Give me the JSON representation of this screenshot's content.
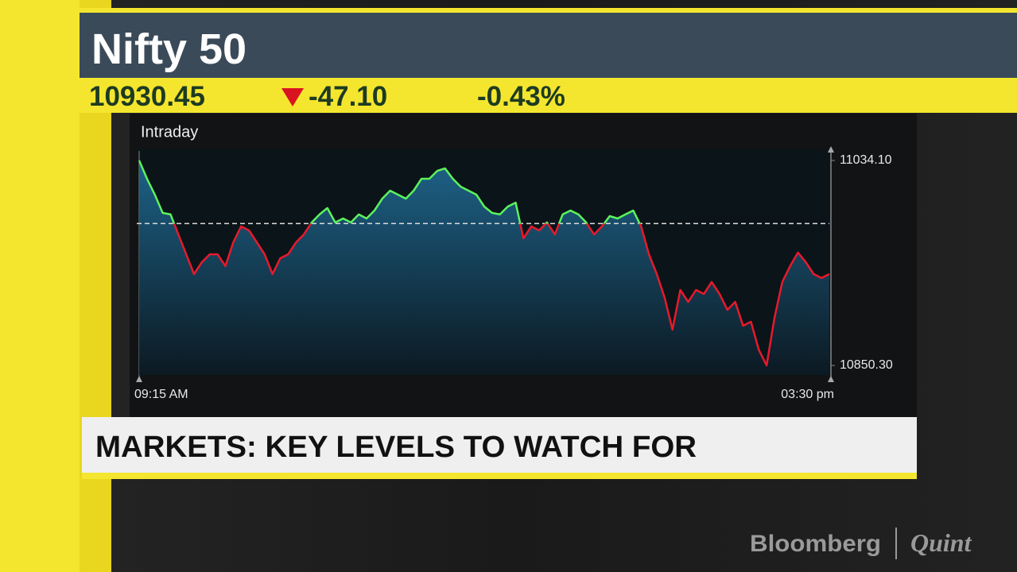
{
  "header": {
    "title": "Nifty 50",
    "price": "10930.45",
    "change": "-47.10",
    "percent": "-0.43%"
  },
  "chart_data": {
    "type": "line",
    "subtitle": "Intraday",
    "categories": [
      "09:15 AM",
      null,
      null,
      null,
      null,
      null,
      null,
      null,
      null,
      null,
      null,
      null,
      null,
      null,
      null,
      null,
      null,
      null,
      null,
      null,
      null,
      null,
      null,
      null,
      null,
      null,
      null,
      null,
      null,
      null,
      null,
      null,
      null,
      null,
      null,
      null,
      null,
      null,
      null,
      null,
      null,
      null,
      null,
      null,
      null,
      null,
      null,
      null,
      null,
      null,
      null,
      null,
      null,
      null,
      null,
      null,
      null,
      null,
      null,
      null,
      null,
      null,
      null,
      null,
      null,
      null,
      null,
      null,
      null,
      null,
      null,
      null,
      null,
      null,
      null,
      null,
      null,
      null,
      null,
      null,
      null,
      null,
      null,
      null,
      null,
      null,
      null,
      null,
      "03:30 pm"
    ],
    "values": [
      11034.1,
      11017.7,
      11003.5,
      10987.1,
      10985.7,
      10967.8,
      10950.0,
      10932.2,
      10942.9,
      10950.0,
      10950.0,
      10939.4,
      10960.7,
      10975.0,
      10971.4,
      10960.7,
      10950.0,
      10932.2,
      10946.5,
      10950.0,
      10960.7,
      10967.8,
      10978.5,
      10985.7,
      10991.4,
      10978.5,
      10982.1,
      10978.5,
      10985.7,
      10982.1,
      10989.2,
      10999.9,
      11007.0,
      11003.5,
      10999.9,
      11007.0,
      11017.7,
      11017.7,
      11024.8,
      11027.0,
      11017.7,
      11010.6,
      11007.0,
      11003.5,
      10992.8,
      10987.1,
      10985.7,
      10992.8,
      10996.3,
      10964.3,
      10975.0,
      10971.4,
      10978.5,
      10967.8,
      10985.7,
      10989.2,
      10985.7,
      10978.5,
      10967.8,
      10975.0,
      10984.2,
      10982.1,
      10985.7,
      10989.2,
      10975.0,
      10950.0,
      10932.2,
      10910.9,
      10882.4,
      10918.0,
      10907.3,
      10918.0,
      10914.4,
      10925.1,
      10914.4,
      10900.2,
      10907.3,
      10885.9,
      10889.5,
      10864.5,
      10850.3,
      10893.0,
      10925.1,
      10939.4,
      10951.5,
      10942.9,
      10932.2,
      10928.7,
      10932.2
    ],
    "reference_line": 10977.55,
    "color_above": "#5cf25c",
    "color_below": "#e8192c",
    "area_color": "#1f6a93",
    "ylim": [
      10850.3,
      11034.1
    ],
    "yticks": [
      {
        "value": 10850.3,
        "label": "10850.30"
      },
      {
        "value": 11034.1,
        "label": "11034.10"
      }
    ]
  },
  "caption": {
    "text": "MARKETS: KEY LEVELS TO WATCH FOR"
  },
  "logo": {
    "brand": "Bloomberg",
    "partner": "Quint"
  }
}
